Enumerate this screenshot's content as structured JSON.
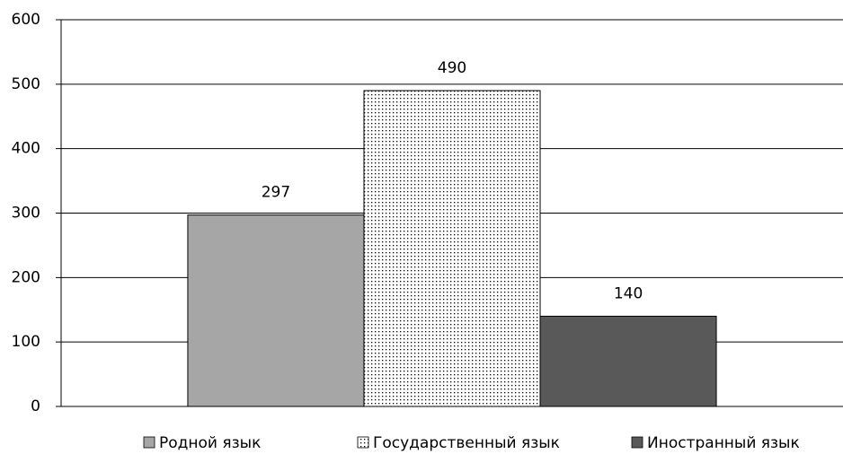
{
  "chart_data": {
    "type": "bar",
    "categories": [
      null
    ],
    "series": [
      {
        "name": "Родной язык",
        "color": "#a6a6a6",
        "values": [
          297
        ]
      },
      {
        "name": "Государственный язык",
        "color": "#000000",
        "pattern": "dotted",
        "values": [
          490
        ]
      },
      {
        "name": "Иностранный язык",
        "color": "#595959",
        "values": [
          140
        ]
      }
    ],
    "ylim": [
      0,
      600
    ],
    "yticks": [
      0,
      100,
      200,
      300,
      400,
      500,
      600
    ],
    "grid": true,
    "legend": "bottom",
    "data_labels": true
  }
}
